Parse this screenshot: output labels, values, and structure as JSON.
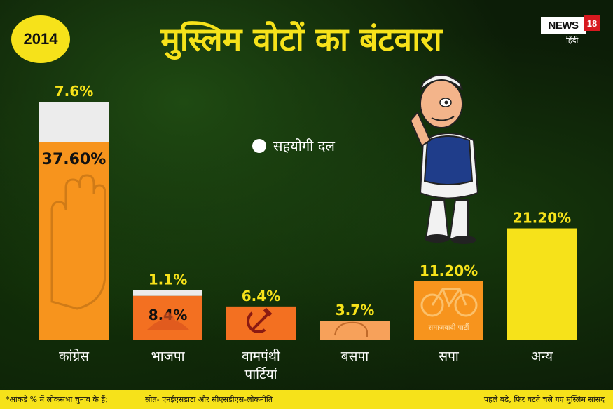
{
  "header": {
    "year_badge": "2014",
    "title": "मुस्लिम वोटों का बंटवारा",
    "logo_text": "NEWS",
    "logo_number": "18",
    "logo_sub": "हिंदी"
  },
  "legend": {
    "label": "सहयोगी दल",
    "color": "#ffffff"
  },
  "colors": {
    "accent": "#f6e21a",
    "ally": "#ffffff",
    "congress": "#f7941d",
    "bjp": "#f37021",
    "left": "#f37021",
    "bsp": "#f7a15a",
    "sp": "#f7941d",
    "other": "#f6e21a"
  },
  "icons": [
    "congress-hand-icon",
    "bjp-lotus-icon",
    "hammer-sickle-icon",
    "bsp-elephant-icon",
    "bicycle-icon",
    "politician-illustration"
  ],
  "chart_data": {
    "type": "bar",
    "categories": [
      "कांग्रेस",
      "भाजपा",
      "वामपंथी पार्टियां",
      "बसपा",
      "सपा",
      "अन्य"
    ],
    "series": [
      {
        "name": "",
        "values": [
          37.6,
          8.4,
          6.4,
          3.7,
          11.2,
          21.2
        ],
        "labels": [
          "37.60%",
          "8.4%",
          "6.4%",
          "3.7%",
          "11.20%",
          "21.20%"
        ]
      },
      {
        "name": "सहयोगी दल",
        "values": [
          7.6,
          1.1,
          null,
          null,
          null,
          null
        ],
        "labels": [
          "7.6%",
          "1.1%",
          "",
          "",
          "",
          ""
        ]
      }
    ],
    "bar_colors": [
      "#f7941d",
      "#f37021",
      "#f37021",
      "#f7a15a",
      "#f7941d",
      "#f6e21a"
    ],
    "inner_text": [
      "",
      "",
      "",
      "",
      "समाजवादी पार्टी",
      ""
    ],
    "ylim": [
      0,
      45.2
    ]
  },
  "footer": {
    "note": "*आंकड़े % में लोकसभा चुनाव के हैं;",
    "source": "स्रोत- एनईएसडाटा और सीएसडीएस-लोकनीति",
    "right_text": "पहले बढ़े, फिर घटते चले गए मुस्लिम सांसद"
  }
}
